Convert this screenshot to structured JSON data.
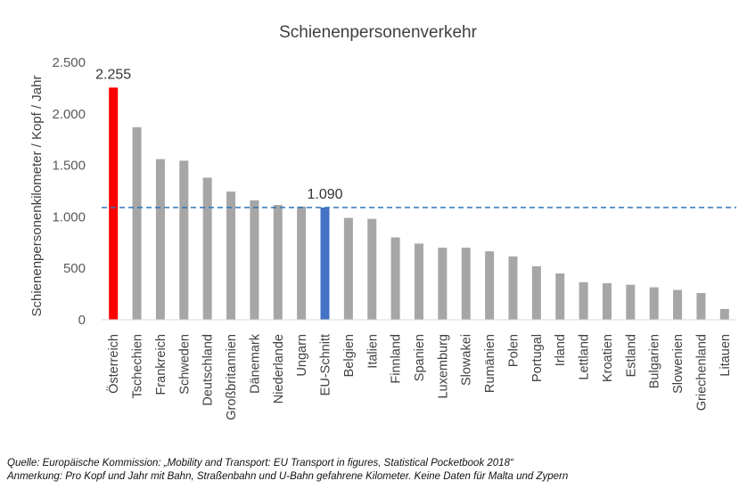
{
  "chart_data": {
    "type": "bar",
    "title": "Schienenpersonenverkehr",
    "ylabel": "Schienenpersonenkilometer  / Kopf / Jahr",
    "xlabel": "",
    "ylim": [
      0,
      2500
    ],
    "yticks": [
      0,
      500,
      1000,
      1500,
      2000,
      2500
    ],
    "ytick_labels": [
      "0",
      "500",
      "1.000",
      "1.500",
      "2.000",
      "2.500"
    ],
    "categories": [
      "Österreich",
      "Tschechien",
      "Frankreich",
      "Schweden",
      "Deutschland",
      "Großbritannien",
      "Dänemark",
      "Niederlande",
      "Ungarn",
      "EU-Schnitt",
      "Belgien",
      "Italien",
      "Finnland",
      "Spanien",
      "Luxemburg",
      "Slowakei",
      "Rumänien",
      "Polen",
      "Portugal",
      "Irland",
      "Lettland",
      "Kroatien",
      "Estland",
      "Bulgarien",
      "Slowenien",
      "Griechenland",
      "Litauen"
    ],
    "values": [
      2255,
      1870,
      1560,
      1545,
      1380,
      1245,
      1160,
      1115,
      1100,
      1090,
      990,
      980,
      800,
      740,
      700,
      700,
      665,
      615,
      520,
      450,
      365,
      355,
      340,
      315,
      290,
      260,
      105
    ],
    "bar_colors": [
      "#ff0000",
      "#a6a6a6",
      "#a6a6a6",
      "#a6a6a6",
      "#a6a6a6",
      "#a6a6a6",
      "#a6a6a6",
      "#a6a6a6",
      "#a6a6a6",
      "#4472c4",
      "#a6a6a6",
      "#a6a6a6",
      "#a6a6a6",
      "#a6a6a6",
      "#a6a6a6",
      "#a6a6a6",
      "#a6a6a6",
      "#a6a6a6",
      "#a6a6a6",
      "#a6a6a6",
      "#a6a6a6",
      "#a6a6a6",
      "#a6a6a6",
      "#a6a6a6",
      "#a6a6a6",
      "#a6a6a6",
      "#a6a6a6"
    ],
    "data_labels": [
      {
        "category": "Österreich",
        "text": "2.255"
      },
      {
        "category": "EU-Schnitt",
        "text": "1.090"
      }
    ],
    "reference_line": {
      "value": 1090,
      "style": "dashed",
      "color": "#2e75b6"
    },
    "grid": false,
    "legend": "none"
  },
  "footnotes": {
    "source": "Quelle: Europäische Kommission: „Mobility and Transport: EU Transport in figures, Statistical Pocketbook 2018“",
    "note": "Anmerkung: Pro Kopf und Jahr mit Bahn, Straßenbahn und U-Bahn gefahrene Kilometer. Keine Daten für Malta und Zypern"
  }
}
